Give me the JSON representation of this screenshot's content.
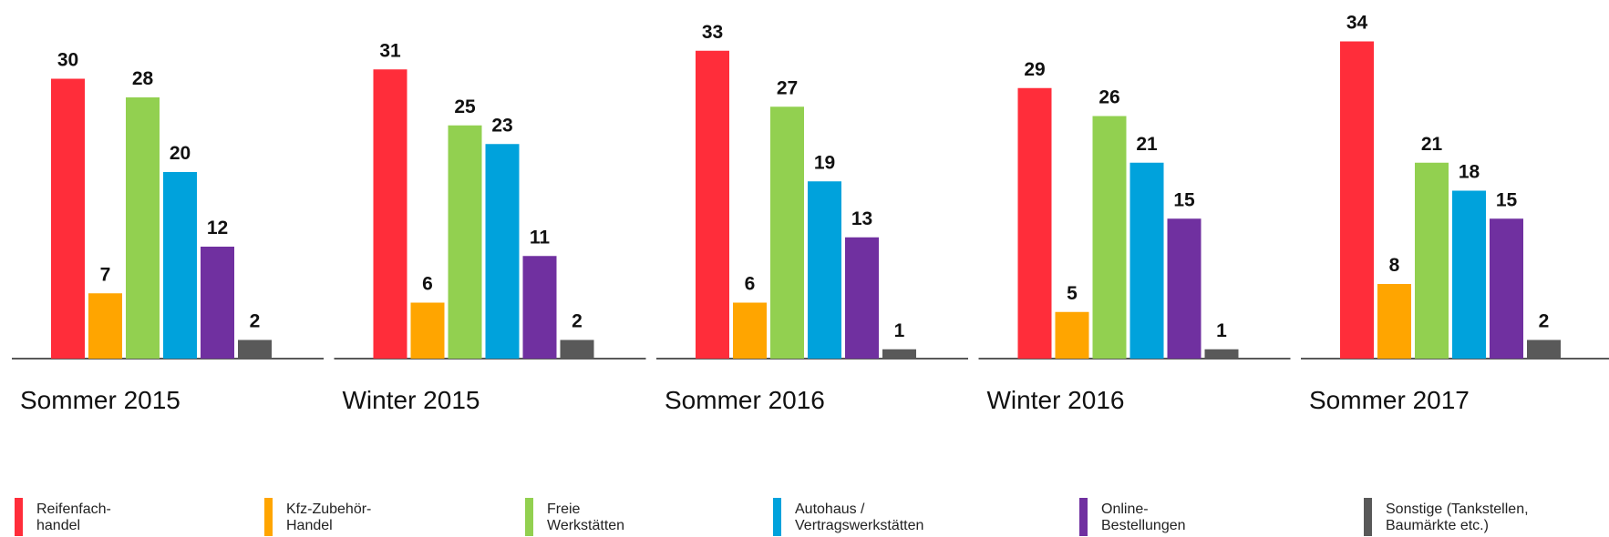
{
  "chart_data": {
    "type": "bar",
    "categories": [
      "Sommer 2015",
      "Winter 2015",
      "Sommer 2016",
      "Winter 2016",
      "Sommer 2017"
    ],
    "series": [
      {
        "name": "Reifenfach-\nhandel",
        "color": "#ff2d3a",
        "values": [
          30,
          31,
          33,
          29,
          34
        ]
      },
      {
        "name": "Kfz-Zubehör-\nHandel",
        "color": "#ffa500",
        "values": [
          7,
          6,
          6,
          5,
          8
        ]
      },
      {
        "name": "Freie\nWerkstätten",
        "color": "#92d050",
        "values": [
          28,
          25,
          27,
          26,
          21
        ]
      },
      {
        "name": "Autohaus /\nVertragswerkstätten",
        "color": "#00a2dc",
        "values": [
          20,
          23,
          19,
          21,
          18
        ]
      },
      {
        "name": "Online-\nBestellungen",
        "color": "#7030a0",
        "values": [
          12,
          11,
          13,
          15,
          15
        ]
      },
      {
        "name": "Sonstige (Tankstellen,\nBaumärkte etc.)",
        "color": "#595959",
        "values": [
          2,
          2,
          1,
          1,
          2
        ]
      }
    ]
  }
}
